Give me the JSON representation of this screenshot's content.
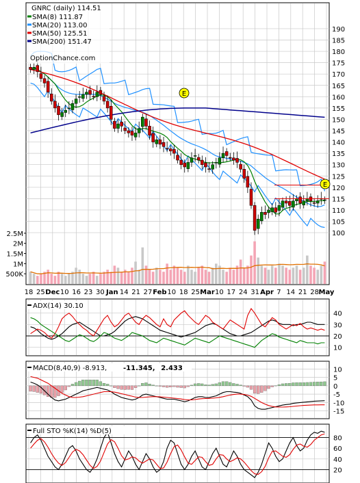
{
  "chart_data": [
    {
      "type": "candlestick",
      "title": "GNRC (daily) 114.51",
      "watermark": "OptionChance.com",
      "legend": [
        {
          "label": "SMA(8) 111.87",
          "color": "#008000"
        },
        {
          "label": "SMA(20) 113.00",
          "color": "#1e90ff"
        },
        {
          "label": "SMA(50) 125.51",
          "color": "#e00000"
        },
        {
          "label": "SMA(200) 151.47",
          "color": "#00008b"
        }
      ],
      "ylim": [
        95,
        195
      ],
      "ytick_labels": [
        "190",
        "185",
        "180",
        "175",
        "170",
        "165",
        "160",
        "155",
        "150",
        "145",
        "140",
        "135",
        "130",
        "125",
        "120",
        "115",
        "110",
        "105",
        "100"
      ],
      "events": [
        {
          "label": "E",
          "x": 75,
          "price": 158
        },
        {
          "label": "E",
          "x": 148,
          "price": 118
        }
      ],
      "price_marks": [
        121,
        115
      ],
      "x_tick_labels": [
        "18",
        "25",
        "Dec",
        "10",
        "16",
        "23",
        "30",
        "Jan",
        "14",
        "21",
        "27",
        "Feb",
        "10",
        "18",
        "25",
        "Mar",
        "10",
        "17",
        "24",
        "31",
        "Apr",
        "7",
        "14",
        "21",
        "28",
        "May"
      ],
      "closes": [
        172,
        173,
        171,
        168,
        166,
        162,
        158,
        155,
        152,
        153,
        154,
        155,
        157,
        159,
        160,
        161,
        162,
        161,
        160,
        162,
        161,
        158,
        155,
        150,
        146,
        148,
        147,
        145,
        144,
        143,
        144,
        146,
        151,
        147,
        143,
        140,
        141,
        139,
        138,
        137,
        136,
        135,
        132,
        130,
        129,
        131,
        133,
        134,
        132,
        130,
        129,
        128,
        130,
        131,
        133,
        135,
        134,
        133,
        132,
        131,
        128,
        124,
        120,
        112,
        101,
        106,
        109,
        108,
        110,
        111,
        109,
        112,
        114,
        113,
        112,
        114,
        115,
        113,
        114,
        115,
        114,
        113,
        114,
        115,
        114.5
      ],
      "volume_ylabels": [
        "2.5M",
        "2M",
        "1.5M",
        "1M",
        "500K"
      ],
      "volume_ylim": [
        0,
        2800000
      ],
      "volume_millions": [
        0.6,
        0.5,
        0.4,
        0.5,
        0.6,
        0.7,
        0.5,
        0.4,
        0.6,
        0.5,
        0.4,
        0.5,
        0.6,
        0.8,
        0.7,
        0.5,
        0.4,
        0.5,
        0.6,
        0.4,
        0.5,
        0.6,
        0.7,
        0.6,
        0.9,
        0.8,
        0.6,
        0.7,
        0.6,
        0.8,
        1.1,
        0.7,
        1.8,
        0.9,
        0.7,
        0.6,
        0.8,
        0.7,
        0.6,
        1.0,
        0.7,
        0.9,
        0.8,
        0.7,
        0.6,
        0.9,
        0.7,
        0.6,
        0.8,
        0.9,
        0.7,
        0.6,
        0.8,
        1.0,
        0.9,
        0.7,
        0.6,
        0.8,
        0.7,
        0.9,
        1.2,
        0.8,
        0.9,
        1.4,
        2.1,
        1.3,
        0.9,
        0.8,
        0.7,
        0.9,
        0.8,
        1.0,
        0.9,
        0.8,
        0.7,
        0.8,
        0.9,
        0.7,
        0.8,
        1.4,
        0.9,
        0.8,
        0.7,
        0.9,
        1.1
      ]
    },
    {
      "type": "line",
      "title": "ADX(14) 30.10",
      "ylim": [
        5,
        50
      ],
      "ytick_labels": [
        "40",
        "30",
        "20",
        "10"
      ],
      "series": [
        {
          "color": "#000000",
          "values": [
            28,
            27,
            25,
            22,
            20,
            18,
            17,
            18,
            20,
            22,
            25,
            28,
            30,
            31,
            32,
            30,
            28,
            26,
            24,
            22,
            20,
            20,
            21,
            22,
            24,
            27,
            30,
            33,
            35,
            36,
            37,
            36,
            35,
            33,
            31,
            29,
            27,
            25,
            24,
            23,
            22,
            21,
            20,
            19,
            20,
            21,
            22,
            23,
            25,
            27,
            29,
            30,
            31,
            30,
            28,
            26,
            24,
            22,
            21,
            20,
            20,
            21,
            22,
            23,
            25,
            27,
            29,
            31,
            33,
            34,
            33,
            31,
            30,
            30,
            30,
            29,
            30,
            30,
            31,
            32,
            32,
            31,
            30,
            30,
            30
          ]
        },
        {
          "color": "#e00000",
          "values": [
            22,
            24,
            26,
            25,
            23,
            20,
            18,
            22,
            28,
            35,
            38,
            40,
            37,
            33,
            30,
            27,
            25,
            22,
            20,
            25,
            30,
            35,
            38,
            32,
            28,
            30,
            34,
            38,
            40,
            36,
            32,
            30,
            35,
            38,
            36,
            33,
            30,
            28,
            35,
            30,
            28,
            34,
            37,
            40,
            42,
            38,
            35,
            32,
            30,
            34,
            38,
            36,
            32,
            30,
            28,
            26,
            30,
            34,
            32,
            30,
            28,
            26,
            38,
            44,
            40,
            35,
            30,
            28,
            32,
            36,
            34,
            30,
            28,
            26,
            28,
            30,
            29,
            31,
            28,
            26,
            27,
            26,
            25,
            26,
            25
          ]
        },
        {
          "color": "#008000",
          "values": [
            36,
            35,
            33,
            30,
            28,
            26,
            24,
            22,
            20,
            18,
            16,
            15,
            17,
            19,
            21,
            20,
            18,
            16,
            15,
            17,
            20,
            23,
            22,
            20,
            18,
            17,
            16,
            18,
            20,
            23,
            22,
            21,
            20,
            18,
            16,
            15,
            14,
            16,
            18,
            17,
            16,
            15,
            14,
            13,
            12,
            14,
            16,
            18,
            17,
            16,
            15,
            14,
            16,
            18,
            20,
            19,
            18,
            17,
            16,
            15,
            14,
            13,
            12,
            11,
            10,
            13,
            16,
            18,
            20,
            22,
            21,
            19,
            18,
            17,
            16,
            15,
            14,
            16,
            15,
            14,
            14,
            14,
            13,
            14,
            14
          ]
        }
      ],
      "hlines": [
        20
      ]
    },
    {
      "type": "bar",
      "title": "MACD(8,40,9) -8.913, -11.345, 2.433",
      "legend": [
        {
          "label": "MACD(8,40,9) -8.913,",
          "color": "#000000"
        },
        {
          "label": "-11.345,",
          "color": "#e00000"
        },
        {
          "label": "2.433",
          "color": "#0000cc"
        }
      ],
      "ylim": [
        -18,
        13
      ],
      "ytick_labels": [
        "10",
        "5",
        "0",
        "-5",
        "-10",
        "-15"
      ],
      "macd": [
        2.2,
        1.5,
        0.5,
        -1,
        -3,
        -5,
        -7,
        -8.5,
        -9,
        -8.5,
        -8,
        -7,
        -6,
        -5,
        -4,
        -3,
        -2.5,
        -2,
        -1.5,
        -1,
        -1.5,
        -2,
        -2.5,
        -3.5,
        -5,
        -6,
        -7,
        -7.5,
        -8,
        -8.5,
        -8,
        -7,
        -5.5,
        -5,
        -5.5,
        -6,
        -6.5,
        -7,
        -7.5,
        -8,
        -8,
        -8,
        -8.5,
        -9,
        -9.5,
        -9,
        -8,
        -7,
        -6.5,
        -6.5,
        -7,
        -7,
        -6.5,
        -6,
        -5,
        -4,
        -3.5,
        -3.5,
        -3.8,
        -4,
        -4.5,
        -5.5,
        -6.5,
        -8.5,
        -12,
        -13.5,
        -14,
        -14,
        -13.5,
        -13,
        -12.5,
        -12,
        -11.5,
        -11.2,
        -11,
        -10.5,
        -10.2,
        -10,
        -9.8,
        -9.6,
        -9.4,
        -9.2,
        -9.1,
        -9,
        -8.9
      ],
      "signal": [
        5.5,
        5,
        4.5,
        3.5,
        2.5,
        1.5,
        0,
        -1.5,
        -3,
        -4.5,
        -5.5,
        -6.5,
        -7,
        -7,
        -6.8,
        -6.5,
        -6,
        -5.5,
        -5,
        -4.5,
        -4,
        -3.5,
        -3.5,
        -3.5,
        -3.8,
        -4.2,
        -4.8,
        -5.2,
        -5.8,
        -6.2,
        -6.8,
        -7,
        -7,
        -6.8,
        -6.6,
        -6.5,
        -6.5,
        -6.6,
        -6.8,
        -7,
        -7.2,
        -7.4,
        -7.6,
        -7.9,
        -8.2,
        -8.4,
        -8.4,
        -8.2,
        -7.9,
        -7.7,
        -7.6,
        -7.5,
        -7.4,
        -7.2,
        -6.9,
        -6.5,
        -6,
        -5.5,
        -5.2,
        -5,
        -5,
        -5.2,
        -5.6,
        -6.3,
        -7.5,
        -8.8,
        -10,
        -11,
        -11.8,
        -12.3,
        -12.6,
        -12.7,
        -12.7,
        -12.6,
        -12.5,
        -12.3,
        -12.1,
        -11.9,
        -11.7,
        -11.6,
        -11.5,
        -11.4,
        -11.4,
        -11.35,
        -11.345
      ],
      "zero_line": 0
    },
    {
      "type": "line",
      "title": "Full STO %K(14) %D(5)",
      "ylim": [
        0,
        100
      ],
      "ytick_labels": [
        "80",
        "60",
        "40",
        "20"
      ],
      "series": [
        {
          "color": "#000000",
          "values": [
            70,
            80,
            85,
            75,
            60,
            45,
            35,
            25,
            20,
            30,
            45,
            60,
            65,
            55,
            40,
            30,
            20,
            15,
            25,
            40,
            60,
            80,
            90,
            70,
            50,
            35,
            25,
            40,
            55,
            45,
            30,
            20,
            35,
            50,
            40,
            25,
            15,
            20,
            35,
            60,
            75,
            70,
            50,
            30,
            20,
            30,
            45,
            55,
            40,
            25,
            20,
            35,
            50,
            60,
            45,
            30,
            25,
            40,
            55,
            45,
            30,
            20,
            15,
            10,
            5,
            15,
            30,
            50,
            70,
            60,
            45,
            35,
            40,
            55,
            70,
            80,
            65,
            55,
            60,
            75,
            85,
            90,
            88,
            92,
            90
          ]
        },
        {
          "color": "#e00000",
          "values": [
            60,
            68,
            75,
            78,
            72,
            62,
            50,
            40,
            32,
            28,
            33,
            43,
            53,
            58,
            55,
            48,
            38,
            28,
            22,
            26,
            36,
            52,
            68,
            76,
            72,
            60,
            46,
            38,
            40,
            44,
            42,
            36,
            32,
            36,
            40,
            38,
            30,
            22,
            23,
            34,
            50,
            63,
            66,
            57,
            44,
            32,
            30,
            37,
            44,
            43,
            35,
            28,
            30,
            40,
            48,
            47,
            40,
            35,
            38,
            42,
            40,
            34,
            26,
            18,
            12,
            11,
            16,
            26,
            42,
            54,
            55,
            50,
            45,
            43,
            48,
            58,
            66,
            68,
            64,
            62,
            67,
            75,
            80,
            85,
            87
          ]
        }
      ],
      "hlines": [
        80,
        20
      ]
    }
  ],
  "x_labels_price": [
    "18",
    "25",
    "Dec",
    "10",
    "16",
    "23",
    "30",
    "Jan",
    "14",
    "21",
    "27",
    "Feb",
    "10",
    "18",
    "25",
    "Mar",
    "10",
    "17",
    "24",
    "31",
    "Apr",
    "7",
    "14",
    "21",
    "28",
    "May"
  ],
  "ui": {
    "colors": {
      "up": "#008000",
      "down": "#cc0000",
      "vol_up": "#c8c8c8",
      "vol_down": "#f4a5b5",
      "grid": "#c8c8c8",
      "frame": "#000000",
      "event": "#ffff00",
      "hist_pos": "#90c890",
      "hist_neg": "#e8a0a8"
    }
  }
}
